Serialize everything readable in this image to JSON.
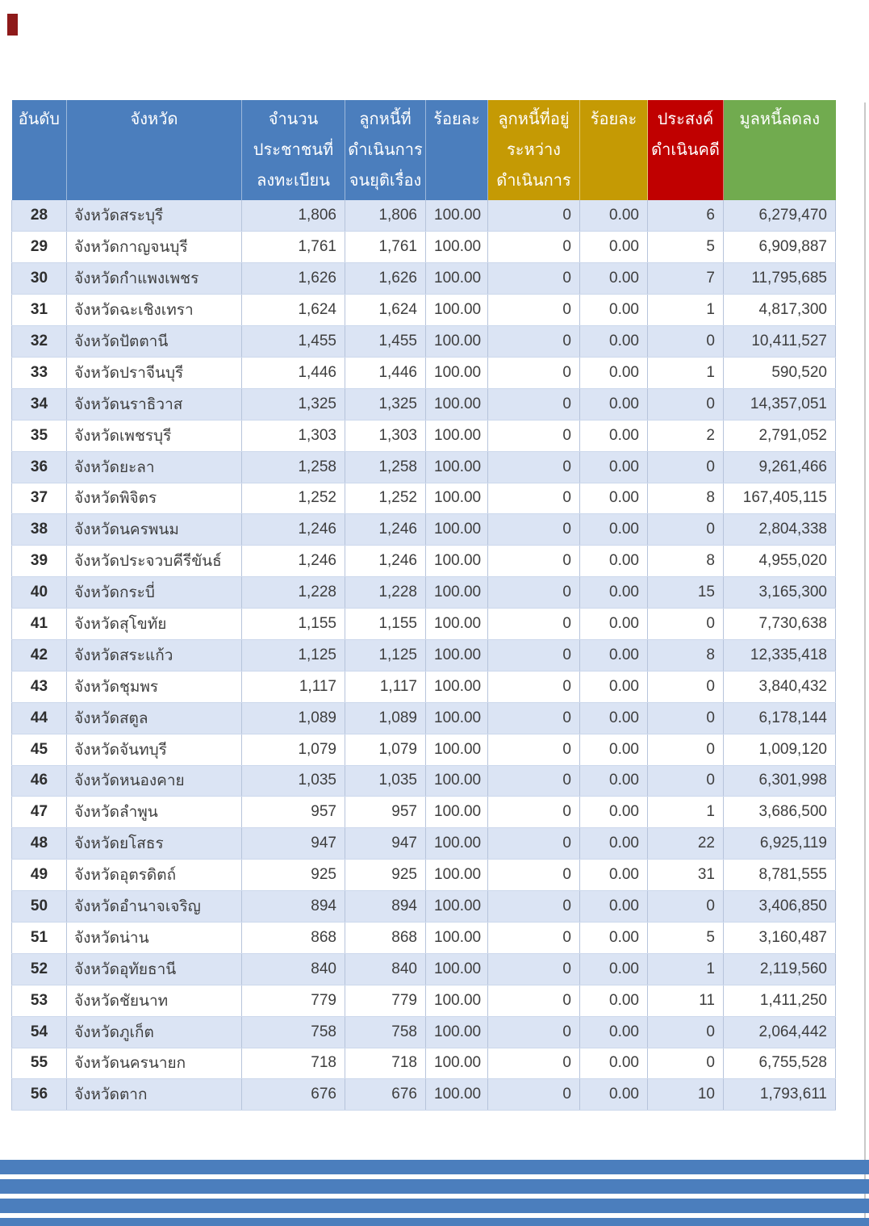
{
  "table": {
    "headers": [
      {
        "label": "อันดับ",
        "color": "#4b7ebd"
      },
      {
        "label": "จังหวัด",
        "color": "#4b7ebd"
      },
      {
        "label": "จำนวน\nประชาชนที่\nลงทะเบียน",
        "color": "#4b7ebd"
      },
      {
        "label": "ลูกหนี้ที่\nดำเนินการ\nจนยุติเรื่อง",
        "color": "#4b7ebd"
      },
      {
        "label": "ร้อยละ",
        "color": "#4b7ebd"
      },
      {
        "label": "ลูกหนี้ที่อยู่\nระหว่าง\nดำเนินการ",
        "color": "#c59a04"
      },
      {
        "label": "ร้อยละ",
        "color": "#c59a04"
      },
      {
        "label": "ประสงค์\nดำเนินคดี",
        "color": "#c00000"
      },
      {
        "label": "มูลหนี้ลดลง",
        "color": "#71ab4f"
      }
    ],
    "rows": [
      {
        "rank": "28",
        "province": "จังหวัดสระบุรี",
        "registered": "1,806",
        "resolved": "1,806",
        "pct_resolved": "100.00",
        "in_progress": "0",
        "pct_in_progress": "0.00",
        "prosecute": "6",
        "debt_reduced": "6,279,470"
      },
      {
        "rank": "29",
        "province": "จังหวัดกาญจนบุรี",
        "registered": "1,761",
        "resolved": "1,761",
        "pct_resolved": "100.00",
        "in_progress": "0",
        "pct_in_progress": "0.00",
        "prosecute": "5",
        "debt_reduced": "6,909,887"
      },
      {
        "rank": "30",
        "province": "จังหวัดกำแพงเพชร",
        "registered": "1,626",
        "resolved": "1,626",
        "pct_resolved": "100.00",
        "in_progress": "0",
        "pct_in_progress": "0.00",
        "prosecute": "7",
        "debt_reduced": "11,795,685"
      },
      {
        "rank": "31",
        "province": "จังหวัดฉะเชิงเทรา",
        "registered": "1,624",
        "resolved": "1,624",
        "pct_resolved": "100.00",
        "in_progress": "0",
        "pct_in_progress": "0.00",
        "prosecute": "1",
        "debt_reduced": "4,817,300"
      },
      {
        "rank": "32",
        "province": "จังหวัดปัตตานี",
        "registered": "1,455",
        "resolved": "1,455",
        "pct_resolved": "100.00",
        "in_progress": "0",
        "pct_in_progress": "0.00",
        "prosecute": "0",
        "debt_reduced": "10,411,527"
      },
      {
        "rank": "33",
        "province": "จังหวัดปราจีนบุรี",
        "registered": "1,446",
        "resolved": "1,446",
        "pct_resolved": "100.00",
        "in_progress": "0",
        "pct_in_progress": "0.00",
        "prosecute": "1",
        "debt_reduced": "590,520"
      },
      {
        "rank": "34",
        "province": "จังหวัดนราธิวาส",
        "registered": "1,325",
        "resolved": "1,325",
        "pct_resolved": "100.00",
        "in_progress": "0",
        "pct_in_progress": "0.00",
        "prosecute": "0",
        "debt_reduced": "14,357,051"
      },
      {
        "rank": "35",
        "province": "จังหวัดเพชรบุรี",
        "registered": "1,303",
        "resolved": "1,303",
        "pct_resolved": "100.00",
        "in_progress": "0",
        "pct_in_progress": "0.00",
        "prosecute": "2",
        "debt_reduced": "2,791,052"
      },
      {
        "rank": "36",
        "province": "จังหวัดยะลา",
        "registered": "1,258",
        "resolved": "1,258",
        "pct_resolved": "100.00",
        "in_progress": "0",
        "pct_in_progress": "0.00",
        "prosecute": "0",
        "debt_reduced": "9,261,466"
      },
      {
        "rank": "37",
        "province": "จังหวัดพิจิตร",
        "registered": "1,252",
        "resolved": "1,252",
        "pct_resolved": "100.00",
        "in_progress": "0",
        "pct_in_progress": "0.00",
        "prosecute": "8",
        "debt_reduced": "167,405,115"
      },
      {
        "rank": "38",
        "province": "จังหวัดนครพนม",
        "registered": "1,246",
        "resolved": "1,246",
        "pct_resolved": "100.00",
        "in_progress": "0",
        "pct_in_progress": "0.00",
        "prosecute": "0",
        "debt_reduced": "2,804,338"
      },
      {
        "rank": "39",
        "province": "จังหวัดประจวบคีรีขันธ์",
        "registered": "1,246",
        "resolved": "1,246",
        "pct_resolved": "100.00",
        "in_progress": "0",
        "pct_in_progress": "0.00",
        "prosecute": "8",
        "debt_reduced": "4,955,020"
      },
      {
        "rank": "40",
        "province": "จังหวัดกระบี่",
        "registered": "1,228",
        "resolved": "1,228",
        "pct_resolved": "100.00",
        "in_progress": "0",
        "pct_in_progress": "0.00",
        "prosecute": "15",
        "debt_reduced": "3,165,300"
      },
      {
        "rank": "41",
        "province": "จังหวัดสุโขทัย",
        "registered": "1,155",
        "resolved": "1,155",
        "pct_resolved": "100.00",
        "in_progress": "0",
        "pct_in_progress": "0.00",
        "prosecute": "0",
        "debt_reduced": "7,730,638"
      },
      {
        "rank": "42",
        "province": "จังหวัดสระแก้ว",
        "registered": "1,125",
        "resolved": "1,125",
        "pct_resolved": "100.00",
        "in_progress": "0",
        "pct_in_progress": "0.00",
        "prosecute": "8",
        "debt_reduced": "12,335,418"
      },
      {
        "rank": "43",
        "province": "จังหวัดชุมพร",
        "registered": "1,117",
        "resolved": "1,117",
        "pct_resolved": "100.00",
        "in_progress": "0",
        "pct_in_progress": "0.00",
        "prosecute": "0",
        "debt_reduced": "3,840,432"
      },
      {
        "rank": "44",
        "province": "จังหวัดสตูล",
        "registered": "1,089",
        "resolved": "1,089",
        "pct_resolved": "100.00",
        "in_progress": "0",
        "pct_in_progress": "0.00",
        "prosecute": "0",
        "debt_reduced": "6,178,144"
      },
      {
        "rank": "45",
        "province": "จังหวัดจันทบุรี",
        "registered": "1,079",
        "resolved": "1,079",
        "pct_resolved": "100.00",
        "in_progress": "0",
        "pct_in_progress": "0.00",
        "prosecute": "0",
        "debt_reduced": "1,009,120"
      },
      {
        "rank": "46",
        "province": "จังหวัดหนองคาย",
        "registered": "1,035",
        "resolved": "1,035",
        "pct_resolved": "100.00",
        "in_progress": "0",
        "pct_in_progress": "0.00",
        "prosecute": "0",
        "debt_reduced": "6,301,998"
      },
      {
        "rank": "47",
        "province": "จังหวัดลำพูน",
        "registered": "957",
        "resolved": "957",
        "pct_resolved": "100.00",
        "in_progress": "0",
        "pct_in_progress": "0.00",
        "prosecute": "1",
        "debt_reduced": "3,686,500"
      },
      {
        "rank": "48",
        "province": "จังหวัดยโสธร",
        "registered": "947",
        "resolved": "947",
        "pct_resolved": "100.00",
        "in_progress": "0",
        "pct_in_progress": "0.00",
        "prosecute": "22",
        "debt_reduced": "6,925,119"
      },
      {
        "rank": "49",
        "province": "จังหวัดอุตรดิตถ์",
        "registered": "925",
        "resolved": "925",
        "pct_resolved": "100.00",
        "in_progress": "0",
        "pct_in_progress": "0.00",
        "prosecute": "31",
        "debt_reduced": "8,781,555"
      },
      {
        "rank": "50",
        "province": "จังหวัดอำนาจเจริญ",
        "registered": "894",
        "resolved": "894",
        "pct_resolved": "100.00",
        "in_progress": "0",
        "pct_in_progress": "0.00",
        "prosecute": "0",
        "debt_reduced": "3,406,850"
      },
      {
        "rank": "51",
        "province": "จังหวัดน่าน",
        "registered": "868",
        "resolved": "868",
        "pct_resolved": "100.00",
        "in_progress": "0",
        "pct_in_progress": "0.00",
        "prosecute": "5",
        "debt_reduced": "3,160,487"
      },
      {
        "rank": "52",
        "province": "จังหวัดอุทัยธานี",
        "registered": "840",
        "resolved": "840",
        "pct_resolved": "100.00",
        "in_progress": "0",
        "pct_in_progress": "0.00",
        "prosecute": "1",
        "debt_reduced": "2,119,560"
      },
      {
        "rank": "53",
        "province": "จังหวัดชัยนาท",
        "registered": "779",
        "resolved": "779",
        "pct_resolved": "100.00",
        "in_progress": "0",
        "pct_in_progress": "0.00",
        "prosecute": "11",
        "debt_reduced": "1,411,250"
      },
      {
        "rank": "54",
        "province": "จังหวัดภูเก็ต",
        "registered": "758",
        "resolved": "758",
        "pct_resolved": "100.00",
        "in_progress": "0",
        "pct_in_progress": "0.00",
        "prosecute": "0",
        "debt_reduced": "2,064,442"
      },
      {
        "rank": "55",
        "province": "จังหวัดนครนายก",
        "registered": "718",
        "resolved": "718",
        "pct_resolved": "100.00",
        "in_progress": "0",
        "pct_in_progress": "0.00",
        "prosecute": "0",
        "debt_reduced": "6,755,528"
      },
      {
        "rank": "56",
        "province": "จังหวัดตาก",
        "registered": "676",
        "resolved": "676",
        "pct_resolved": "100.00",
        "in_progress": "0",
        "pct_in_progress": "0.00",
        "prosecute": "10",
        "debt_reduced": "1,793,611"
      }
    ]
  },
  "colors": {
    "header_blue": "#4b7ebd",
    "header_gold": "#c59a04",
    "header_red": "#c00000",
    "header_green": "#71ab4f",
    "row_stripe": "#dbe4f4",
    "footer_stripe": "#4b7ebd",
    "red_mark": "#8e1a1a"
  }
}
